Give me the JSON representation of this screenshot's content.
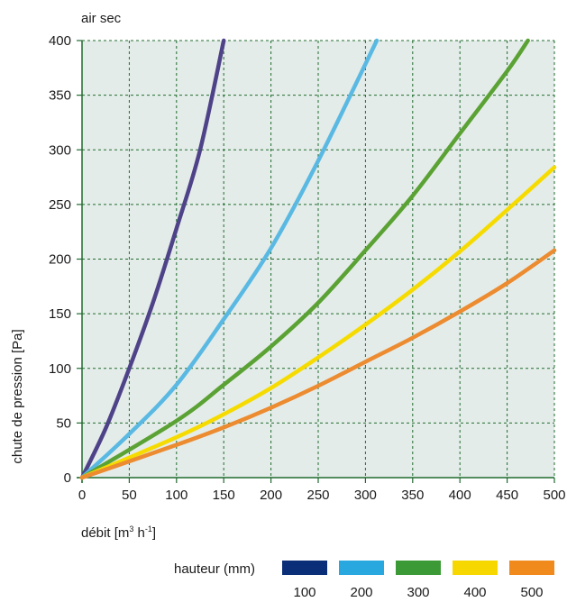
{
  "chart_data": {
    "type": "line",
    "title": "air sec",
    "xlabel": {
      "base": "débit [m",
      "sup1": "3",
      "mid": " h",
      "sup2": "-1",
      "end": "]"
    },
    "ylabel": "chute de pression [Pa]",
    "xlim": [
      0,
      500
    ],
    "ylim": [
      0,
      400
    ],
    "xticks": [
      0,
      50,
      100,
      150,
      200,
      250,
      300,
      350,
      400,
      450,
      500
    ],
    "yticks": [
      0,
      50,
      100,
      150,
      200,
      250,
      300,
      350,
      400
    ],
    "grid": true,
    "legend": {
      "title": "hauteur (mm)",
      "placement": "bottom-right",
      "entries": [
        {
          "label": "100",
          "color": "#0a2f78"
        },
        {
          "label": "200",
          "color": "#29a8e0"
        },
        {
          "label": "300",
          "color": "#3b9a35"
        },
        {
          "label": "400",
          "color": "#f6d800"
        },
        {
          "label": "500",
          "color": "#f08a1c"
        }
      ]
    },
    "series": [
      {
        "color": "#4e4388",
        "points": [
          [
            0,
            0
          ],
          [
            25,
            45
          ],
          [
            50,
            100
          ],
          [
            75,
            160
          ],
          [
            100,
            228
          ],
          [
            125,
            300
          ],
          [
            150,
            400
          ]
        ]
      },
      {
        "color": "#5ab9e3",
        "points": [
          [
            0,
            0
          ],
          [
            50,
            40
          ],
          [
            100,
            85
          ],
          [
            150,
            145
          ],
          [
            200,
            210
          ],
          [
            250,
            290
          ],
          [
            312,
            400
          ]
        ]
      },
      {
        "color": "#5ba234",
        "points": [
          [
            0,
            0
          ],
          [
            100,
            52
          ],
          [
            150,
            85
          ],
          [
            200,
            120
          ],
          [
            250,
            160
          ],
          [
            300,
            208
          ],
          [
            350,
            258
          ],
          [
            400,
            315
          ],
          [
            450,
            372
          ],
          [
            472,
            400
          ]
        ]
      },
      {
        "color": "#f6db00",
        "points": [
          [
            0,
            0
          ],
          [
            100,
            37
          ],
          [
            150,
            58
          ],
          [
            200,
            82
          ],
          [
            250,
            110
          ],
          [
            300,
            140
          ],
          [
            350,
            172
          ],
          [
            400,
            207
          ],
          [
            450,
            245
          ],
          [
            500,
            284
          ]
        ]
      },
      {
        "color": "#ec8b2f",
        "points": [
          [
            0,
            0
          ],
          [
            100,
            30
          ],
          [
            150,
            46
          ],
          [
            200,
            64
          ],
          [
            250,
            84
          ],
          [
            300,
            106
          ],
          [
            350,
            128
          ],
          [
            400,
            152
          ],
          [
            450,
            178
          ],
          [
            500,
            208
          ]
        ]
      }
    ]
  }
}
